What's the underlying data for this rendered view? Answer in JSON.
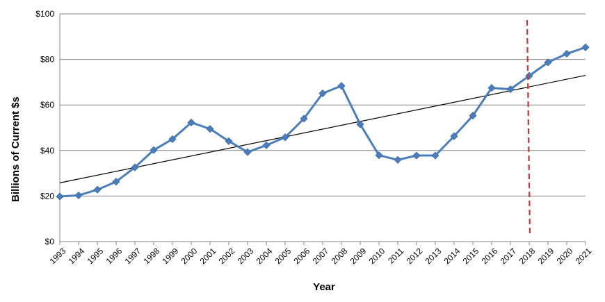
{
  "chart_data": {
    "type": "line",
    "title": "",
    "xlabel": "Year",
    "ylabel": "Billions of Current $s",
    "ylim": [
      0,
      100
    ],
    "yticks": [
      {
        "value": 0,
        "label": "$0"
      },
      {
        "value": 20,
        "label": "$20"
      },
      {
        "value": 40,
        "label": "$40"
      },
      {
        "value": 60,
        "label": "$60"
      },
      {
        "value": 80,
        "label": "$80"
      },
      {
        "value": 100,
        "label": "$100"
      }
    ],
    "categories": [
      "1993",
      "1994",
      "1995",
      "1996",
      "1997",
      "1998",
      "1999",
      "2000",
      "2001",
      "2002",
      "2003",
      "2004",
      "2005",
      "2006",
      "2007",
      "2008",
      "2009",
      "2010",
      "2011",
      "2012",
      "2013",
      "2014",
      "2015",
      "2016",
      "2017",
      "2018",
      "2019",
      "2020",
      "2021"
    ],
    "series": [
      {
        "name": "Billions of Current $s",
        "color": "#4a7ebb",
        "values": [
          19.8,
          20.3,
          22.8,
          26.3,
          32.6,
          40.2,
          45.0,
          52.3,
          49.5,
          44.1,
          39.3,
          42.3,
          45.8,
          54.0,
          65.1,
          68.4,
          51.5,
          37.9,
          35.9,
          37.8,
          37.8,
          46.3,
          55.3,
          67.5,
          66.9,
          72.8,
          78.7,
          82.5,
          85.3
        ]
      }
    ],
    "trendline": {
      "color": "#000000",
      "start_value": 25.8,
      "end_value": 73.0
    },
    "marker_line": {
      "category": "2018",
      "color": "#c0393b",
      "style": "dashed"
    },
    "grid": true,
    "gridline_color": "#868686"
  }
}
